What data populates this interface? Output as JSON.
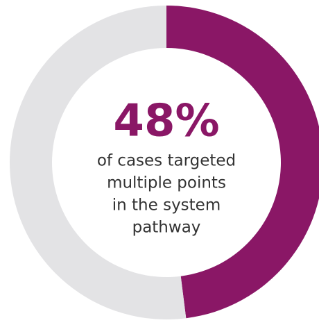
{
  "chart_data": {
    "type": "donut",
    "values": [
      48,
      52
    ],
    "value_labels": [
      "48%",
      null
    ],
    "colors": [
      "#8a1766",
      "#e3e3e5"
    ],
    "annotation": [
      "of cases targeted",
      "multiple points",
      "in the system",
      "pathway"
    ]
  }
}
